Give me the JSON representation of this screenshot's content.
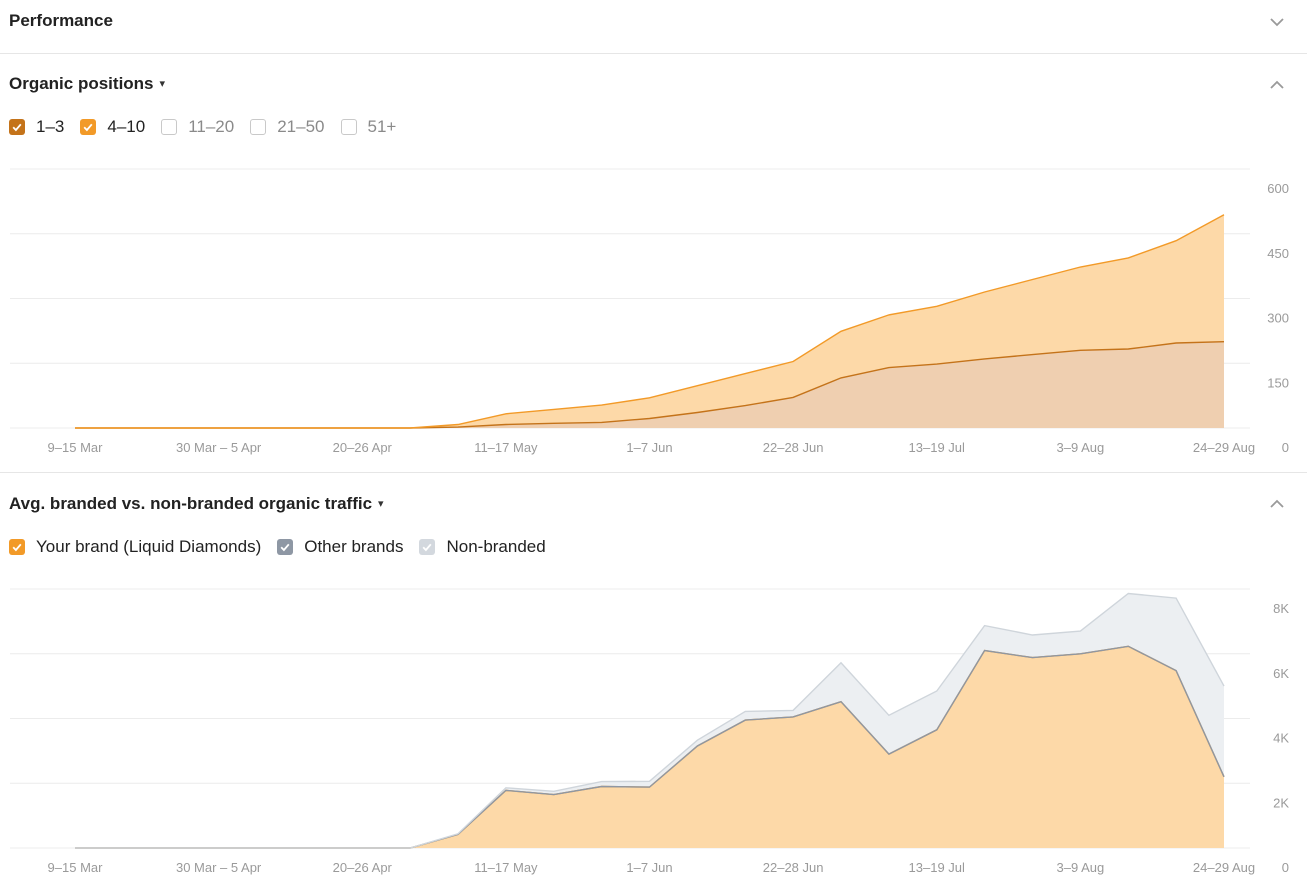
{
  "performance": {
    "title": "Performance"
  },
  "organic_positions": {
    "title": "Organic positions",
    "legend": [
      {
        "label": "1–3",
        "checked": true,
        "color": "#c4731a"
      },
      {
        "label": "4–10",
        "checked": true,
        "color": "#f29a28"
      },
      {
        "label": "11–20",
        "checked": false,
        "color": "#c9c9c9"
      },
      {
        "label": "21–50",
        "checked": false,
        "color": "#c9c9c9"
      },
      {
        "label": "51+",
        "checked": false,
        "color": "#c9c9c9"
      }
    ]
  },
  "branded_traffic": {
    "title": "Avg. branded vs. non-branded organic traffic",
    "legend": [
      {
        "label": "Your brand (Liquid Diamonds)",
        "checked": true,
        "color": "#f29a28"
      },
      {
        "label": "Other brands",
        "checked": true,
        "color": "#8e97a4"
      },
      {
        "label": "Non-branded",
        "checked": true,
        "color": "#d3d8de"
      }
    ]
  },
  "chart_data": [
    {
      "type": "area",
      "x": [
        "9–15 Mar",
        "16–22 Mar",
        "23–29 Mar",
        "30 Mar – 5 Apr",
        "6–12 Apr",
        "13–19 Apr",
        "20–26 Apr",
        "27 Apr – 3 May",
        "4–10 May",
        "11–17 May",
        "18–24 May",
        "25–31 May",
        "1–7 Jun",
        "8–14 Jun",
        "15–21 Jun",
        "22–28 Jun",
        "29 Jun – 5 Jul",
        "6–12 Jul",
        "13–19 Jul",
        "20–26 Jul",
        "27 Jul – 2 Aug",
        "3–9 Aug",
        "10–16 Aug",
        "17–23 Aug",
        "24–29 Aug"
      ],
      "xticks": [
        "9–15 Mar",
        "30 Mar – 5 Apr",
        "20–26 Apr",
        "11–17 May",
        "1–7 Jun",
        "22–28 Jun",
        "13–19 Jul",
        "3–9 Aug",
        "24–29 Aug"
      ],
      "yticks": [
        "0",
        "150",
        "300",
        "450",
        "600"
      ],
      "ylim": [
        0,
        600
      ],
      "stacked": true,
      "series": [
        {
          "name": "1–3",
          "color": "#c4731a",
          "fill": "#efcfb0",
          "values": [
            0,
            0,
            0,
            0,
            0,
            0,
            0,
            0,
            2,
            8,
            11,
            13,
            22,
            36,
            52,
            71,
            116,
            140,
            148,
            160,
            170,
            180,
            183,
            197,
            200
          ]
        },
        {
          "name": "4–10",
          "color": "#f29a28",
          "fill": "#fdd9a8",
          "values": [
            0,
            0,
            0,
            0,
            0,
            0,
            0,
            0,
            6,
            25,
            32,
            40,
            48,
            62,
            74,
            83,
            108,
            122,
            134,
            155,
            174,
            193,
            211,
            237,
            294
          ]
        }
      ]
    },
    {
      "type": "area",
      "x": [
        "9–15 Mar",
        "16–22 Mar",
        "23–29 Mar",
        "30 Mar – 5 Apr",
        "6–12 Apr",
        "13–19 Apr",
        "20–26 Apr",
        "27 Apr – 3 May",
        "4–10 May",
        "11–17 May",
        "18–24 May",
        "25–31 May",
        "1–7 Jun",
        "8–14 Jun",
        "15–21 Jun",
        "22–28 Jun",
        "29 Jun – 5 Jul",
        "6–12 Jul",
        "13–19 Jul",
        "20–26 Jul",
        "27 Jul – 2 Aug",
        "3–9 Aug",
        "10–16 Aug",
        "17–23 Aug",
        "24–29 Aug"
      ],
      "xticks": [
        "9–15 Mar",
        "30 Mar – 5 Apr",
        "20–26 Apr",
        "11–17 May",
        "1–7 Jun",
        "22–28 Jun",
        "13–19 Jul",
        "3–9 Aug",
        "24–29 Aug"
      ],
      "yticks": [
        "0",
        "2K",
        "4K",
        "6K",
        "8K"
      ],
      "ylim": [
        0,
        8000
      ],
      "stacked": true,
      "series": [
        {
          "name": "Your brand (Liquid Diamonds)",
          "color": "#f29a28",
          "fill": "#fdd9a8",
          "values": [
            0,
            0,
            0,
            0,
            0,
            0,
            0,
            0,
            420,
            1780,
            1650,
            1900,
            1880,
            3150,
            3950,
            4050,
            4520,
            2900,
            3650,
            6100,
            5880,
            6000,
            6230,
            5480,
            2200
          ]
        },
        {
          "name": "Other brands",
          "color": "#8e97a4",
          "fill": "#8e97a4",
          "values": [
            0,
            0,
            0,
            0,
            0,
            0,
            0,
            0,
            0,
            0,
            0,
            0,
            0,
            0,
            0,
            0,
            0,
            0,
            0,
            0,
            0,
            0,
            0,
            0,
            0
          ]
        },
        {
          "name": "Non-branded",
          "color": "#cfd5db",
          "fill": "#eceff2",
          "values": [
            0,
            0,
            0,
            0,
            0,
            0,
            0,
            0,
            20,
            80,
            100,
            150,
            180,
            180,
            270,
            200,
            1200,
            1200,
            1200,
            770,
            700,
            700,
            1630,
            2240,
            2800
          ]
        }
      ]
    }
  ]
}
